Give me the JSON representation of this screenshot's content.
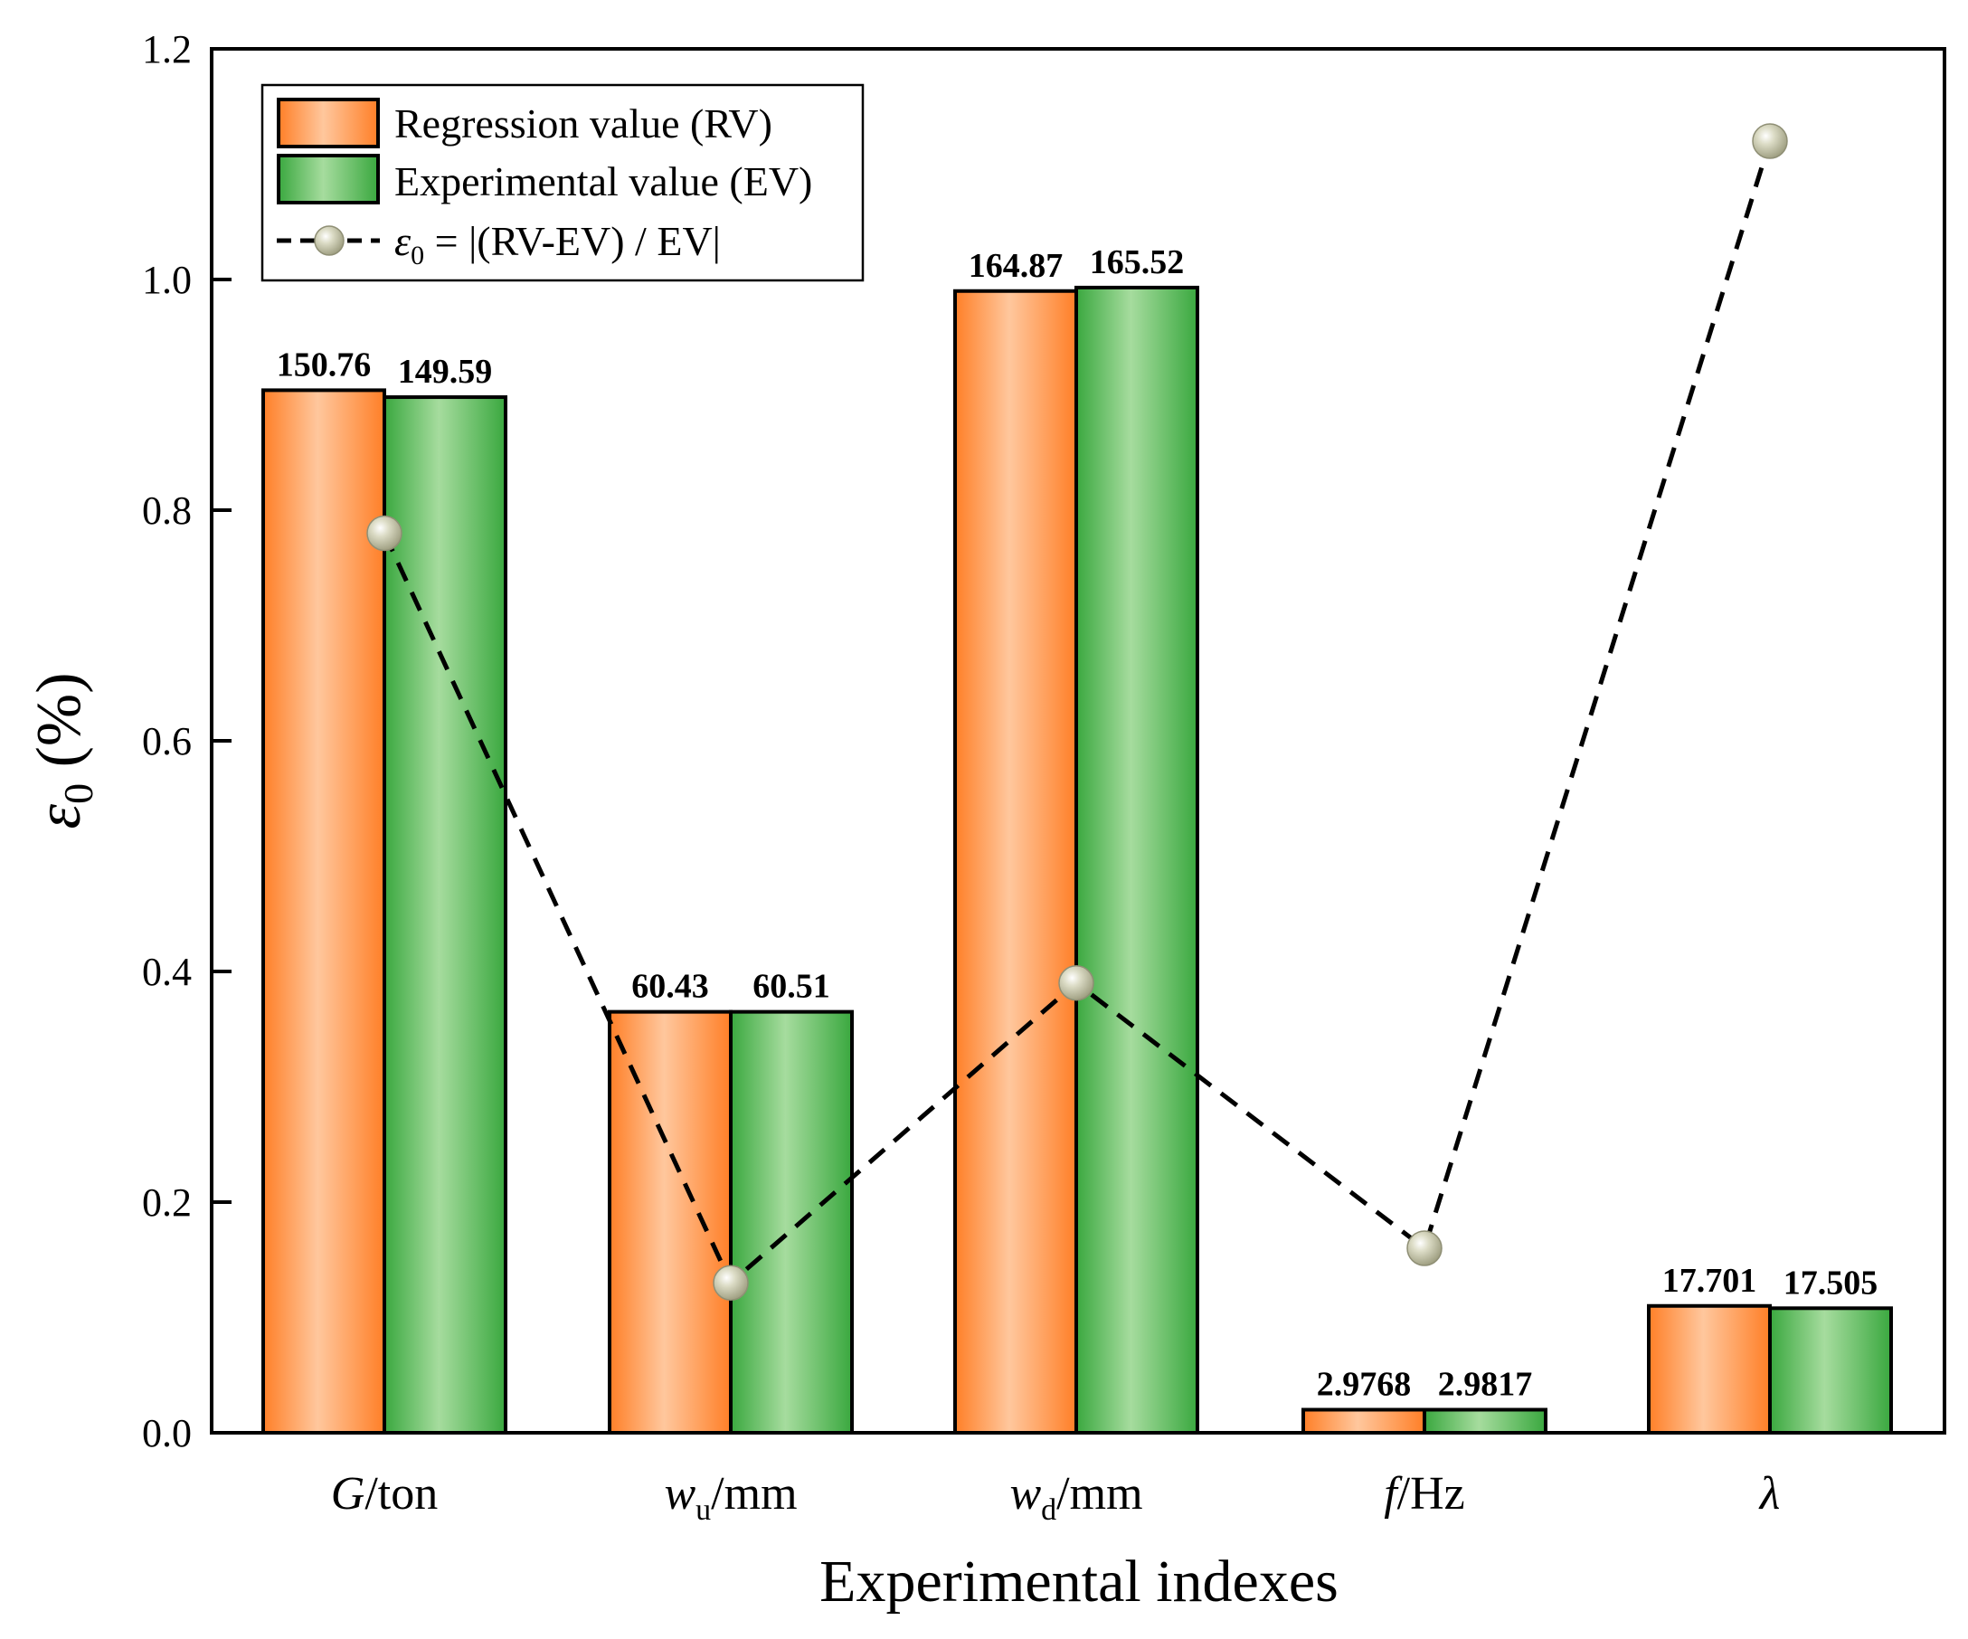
{
  "chart_data": {
    "type": "bar+line",
    "xlabel": "Experimental indexes",
    "ylabel": "ε0 (%)",
    "ylim": [
      0,
      1.2
    ],
    "yticks": [
      "0.0",
      "0.2",
      "0.4",
      "0.6",
      "0.8",
      "1.0",
      "1.2"
    ],
    "categories": [
      {
        "main": "G",
        "sub": "",
        "unit": "/ton",
        "italic": true
      },
      {
        "main": "w",
        "sub": "u",
        "unit": "/mm",
        "italic": true
      },
      {
        "main": "w",
        "sub": "d",
        "unit": "/mm",
        "italic": true
      },
      {
        "main": "f",
        "sub": "",
        "unit": "/Hz",
        "italic": true
      },
      {
        "main": "λ",
        "sub": "",
        "unit": "",
        "italic": true
      }
    ],
    "series": [
      {
        "name": "Regression value (RV)",
        "kind": "bar",
        "color_dark": "#ff7f27",
        "color_light": "#ffc79d",
        "heights": [
          0.904,
          0.365,
          0.99,
          0.02,
          0.11
        ],
        "labels": [
          "150.76",
          "60.43",
          "164.87",
          "2.9768",
          "17.701"
        ]
      },
      {
        "name": "Experimental value (EV)",
        "kind": "bar",
        "color_dark": "#3aa83f",
        "color_light": "#a6dc9e",
        "heights": [
          0.898,
          0.365,
          0.993,
          0.02,
          0.108
        ],
        "labels": [
          "149.59",
          "60.51",
          "165.52",
          "2.9817",
          "17.505"
        ]
      },
      {
        "name": "ε0 = |(RV-EV) / EV|",
        "kind": "line",
        "style": "dashed",
        "marker_color": "#b8b89a",
        "values": [
          0.78,
          0.13,
          0.39,
          0.16,
          1.12
        ]
      }
    ],
    "legend": {
      "position": "top-left",
      "entries": [
        {
          "text": "Regression value (RV)"
        },
        {
          "text": "Experimental value (EV)"
        },
        {
          "prefix": "ε",
          "sub": "0",
          "suffix": " = |(RV-EV) / EV|"
        }
      ]
    }
  }
}
